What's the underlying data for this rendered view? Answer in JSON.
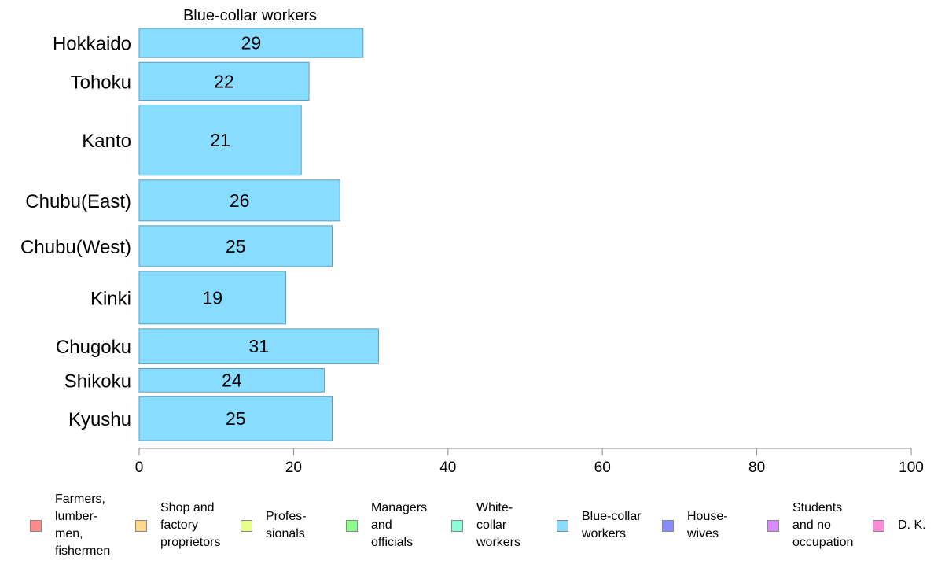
{
  "chart_data": {
    "type": "bar",
    "orientation": "horizontal",
    "title": "Blue-collar workers",
    "categories": [
      "Hokkaido",
      "Tohoku",
      "Kanto",
      "Chubu(East)",
      "Chubu(West)",
      "Kinki",
      "Chugoku",
      "Shikoku",
      "Kyushu"
    ],
    "values": [
      29,
      22,
      21,
      26,
      25,
      19,
      31,
      24,
      25
    ],
    "category_weights": [
      1.0,
      1.3,
      2.4,
      1.4,
      1.4,
      1.8,
      1.2,
      0.8,
      1.5
    ],
    "xlim": [
      0,
      100
    ],
    "xticks": [
      0,
      20,
      40,
      60,
      80,
      100
    ],
    "xlabel": "",
    "ylabel": "",
    "bar_color": "#87dcff",
    "bar_edge_color": "#5f9fb8",
    "grid": false,
    "legend_position": "bottom"
  },
  "legend": {
    "items": [
      {
        "label": "Farmers,\nlumber-\nmen,\nfishermen",
        "color": "#ff8a8a"
      },
      {
        "label": "Shop and\nfactory\nproprietors",
        "color": "#ffd98a"
      },
      {
        "label": "Profes-\nsionals",
        "color": "#e8ff8a"
      },
      {
        "label": "Managers\nand\nofficials",
        "color": "#8aff8a"
      },
      {
        "label": "White-\ncollar\nworkers",
        "color": "#8affd9"
      },
      {
        "label": "Blue-collar\nworkers",
        "color": "#87dcff"
      },
      {
        "label": "House-\nwives",
        "color": "#8a8aff"
      },
      {
        "label": "Students\nand no\noccupation",
        "color": "#d98aff"
      },
      {
        "label": "D. K.",
        "color": "#ff8ad9"
      }
    ]
  }
}
